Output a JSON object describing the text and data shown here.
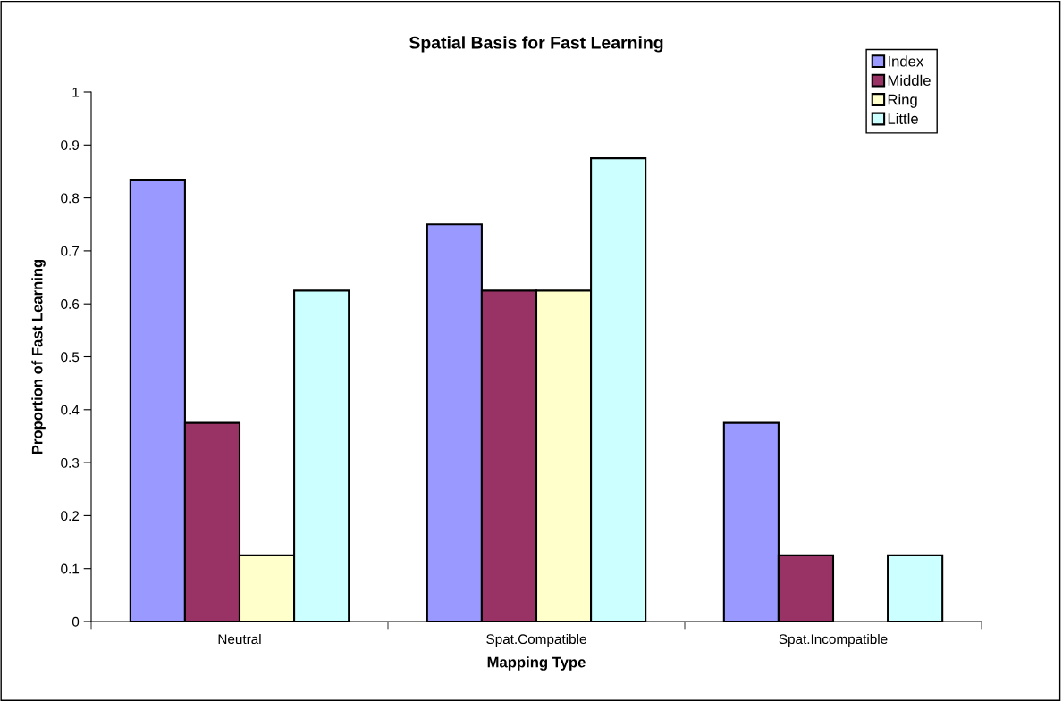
{
  "chart_data": {
    "type": "bar",
    "title": "Spatial Basis for Fast Learning",
    "xlabel": "Mapping Type",
    "ylabel": "Proportion of Fast Learning",
    "categories": [
      "Neutral",
      "Spat.Compatible",
      "Spat.Incompatible"
    ],
    "series": [
      {
        "name": "Index",
        "color": "#9999ff",
        "values": [
          0.833,
          0.75,
          0.375
        ]
      },
      {
        "name": "Middle",
        "color": "#993366",
        "values": [
          0.375,
          0.625,
          0.125
        ]
      },
      {
        "name": "Ring",
        "color": "#ffffcc",
        "values": [
          0.125,
          0.625,
          0
        ]
      },
      {
        "name": "Little",
        "color": "#ccffff",
        "values": [
          0.625,
          0.875,
          0.125
        ]
      }
    ],
    "ylim": [
      0,
      1
    ],
    "yticks": [
      0,
      0.1,
      0.2,
      0.3,
      0.4,
      0.5,
      0.6,
      0.7,
      0.8,
      0.9,
      1
    ],
    "grid": false,
    "legend": "top right"
  }
}
